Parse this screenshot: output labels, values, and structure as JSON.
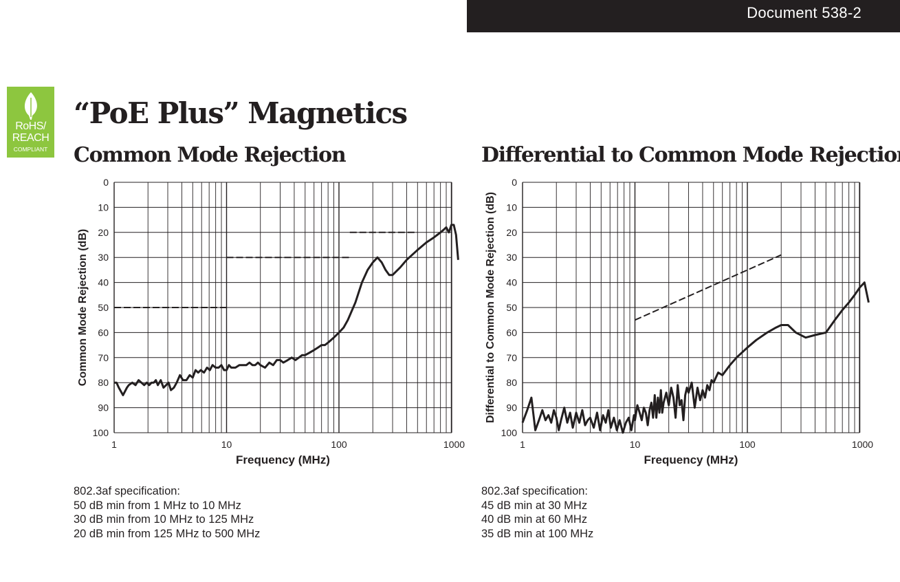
{
  "header": {
    "document_number": "Document 538-2"
  },
  "badge": {
    "line1": "RoHS/",
    "line2": "REACH",
    "line3": "COMPLIANT",
    "color": "#8dc63f",
    "icon": "leaf-icon"
  },
  "page": {
    "title": "“PoE Plus” Magnetics"
  },
  "chart_data": [
    {
      "type": "line",
      "title": "Common Mode Rejection",
      "xlabel": "Frequency (MHz)",
      "ylabel": "Common Mode Rejection (dB)",
      "x_scale": "log",
      "xlim": [
        1,
        1200
      ],
      "ylim": [
        0,
        100
      ],
      "y_inverted": true,
      "x_ticks": [
        "1",
        "10",
        "100",
        "1000"
      ],
      "y_ticks": [
        "0",
        "10",
        "20",
        "30",
        "40",
        "50",
        "60",
        "70",
        "80",
        "90",
        "100"
      ],
      "grid": true,
      "series": [
        {
          "style": "solid",
          "x": [
            1,
            1.05,
            1.1,
            1.2,
            1.3,
            1.35,
            1.45,
            1.55,
            1.65,
            1.75,
            1.85,
            1.95,
            2.05,
            2.15,
            2.25,
            2.35,
            2.45,
            2.6,
            2.75,
            2.9,
            3.05,
            3.2,
            3.4,
            3.6,
            3.85,
            4.1,
            4.4,
            4.7,
            5,
            5.3,
            5.6,
            5.9,
            6.3,
            6.7,
            7.1,
            7.5,
            8,
            8.5,
            9,
            9.5,
            10,
            10.5,
            11,
            12,
            13,
            14,
            15,
            16,
            17,
            18,
            19,
            20,
            22,
            24,
            26,
            28,
            30,
            32,
            35,
            38,
            41,
            44,
            47,
            50,
            55,
            60,
            65,
            70,
            75,
            80,
            90,
            100,
            110,
            120,
            140,
            160,
            180,
            200,
            220,
            240,
            260,
            280,
            300,
            350,
            400,
            500,
            600,
            700,
            800,
            850,
            900,
            950,
            1000,
            1050,
            1100,
            1150
          ],
          "y": [
            80,
            80,
            82,
            85,
            82,
            81,
            80,
            81,
            79,
            80,
            81,
            80,
            81,
            80,
            80,
            79,
            81,
            79,
            82,
            81,
            80,
            83,
            82,
            80,
            77,
            79,
            79,
            77,
            78,
            75,
            76,
            75,
            76,
            74,
            75,
            73,
            74,
            74,
            73,
            75,
            75,
            73,
            74,
            74,
            73,
            73,
            73,
            72,
            73,
            73,
            72,
            73,
            74,
            72,
            73,
            71,
            71,
            72,
            71,
            70,
            71,
            70,
            69,
            69,
            68,
            67,
            66,
            65,
            65,
            64,
            62,
            60,
            58,
            55,
            48,
            40,
            35,
            32,
            30,
            32,
            35,
            37,
            37,
            34,
            31,
            27,
            24,
            22,
            20,
            19,
            18,
            20,
            17,
            17,
            21,
            31
          ]
        },
        {
          "style": "dashed",
          "name_note": "802.3af spec",
          "x": [
            1,
            10
          ],
          "y": [
            50,
            50
          ]
        },
        {
          "style": "dashed",
          "x": [
            10,
            125
          ],
          "y": [
            30,
            30
          ]
        },
        {
          "style": "dashed",
          "x": [
            125,
            500
          ],
          "y": [
            20,
            20
          ]
        }
      ],
      "notes": [
        "802.3af specification:",
        "50 dB min from 1 MHz to 10 MHz",
        "30 dB min from 10 MHz to 125 MHz",
        "20 dB min from 125 MHz to 500 MHz"
      ]
    },
    {
      "type": "line",
      "title": "Differential to Common Mode Rejection",
      "xlabel": "Frequency (MHz)",
      "ylabel": "Differential to Common Mode Rejection (dB)",
      "x_scale": "log",
      "xlim": [
        1,
        1200
      ],
      "ylim": [
        0,
        100
      ],
      "y_inverted": true,
      "x_ticks": [
        "1",
        "10",
        "100",
        "1000"
      ],
      "y_ticks": [
        "0",
        "10",
        "20",
        "30",
        "40",
        "50",
        "60",
        "70",
        "80",
        "90",
        "100"
      ],
      "grid": true,
      "series": [
        {
          "style": "solid",
          "x": [
            1,
            1.1,
            1.2,
            1.3,
            1.4,
            1.5,
            1.6,
            1.7,
            1.8,
            1.9,
            2,
            2.1,
            2.2,
            2.35,
            2.5,
            2.65,
            2.8,
            3,
            3.2,
            3.4,
            3.6,
            3.8,
            4,
            4.3,
            4.6,
            4.9,
            5.2,
            5.5,
            5.8,
            6.1,
            6.5,
            6.9,
            7.3,
            7.8,
            8.3,
            8.8,
            9.3,
            9.8,
            10,
            10.5,
            11,
            11.5,
            12,
            12.5,
            13,
            13.5,
            14,
            14.5,
            15,
            15.5,
            16,
            16.5,
            17,
            17.5,
            18,
            19,
            20,
            21,
            22,
            23,
            24,
            25,
            26,
            27,
            28,
            29,
            30,
            32,
            34,
            36,
            38,
            40,
            42,
            44,
            46,
            48,
            50,
            55,
            60,
            70,
            80,
            100,
            120,
            150,
            180,
            200,
            230,
            270,
            330,
            400,
            500,
            600,
            700,
            800,
            900,
            1000,
            1100,
            1200
          ],
          "y": [
            96,
            91,
            86,
            99,
            95,
            91,
            95,
            93,
            96,
            91,
            94,
            99,
            95,
            90,
            96,
            92,
            98,
            92,
            96,
            91,
            97,
            95,
            94,
            98,
            92,
            99,
            93,
            96,
            91,
            98,
            94,
            99,
            95,
            100,
            96,
            94,
            99,
            93,
            95,
            89,
            92,
            95,
            90,
            92,
            97,
            91,
            88,
            94,
            85,
            94,
            86,
            92,
            83,
            92,
            88,
            84,
            89,
            82,
            86,
            94,
            81,
            89,
            87,
            95,
            85,
            82,
            84,
            80,
            90,
            82,
            87,
            83,
            86,
            81,
            83,
            79,
            80,
            76,
            77,
            73,
            70,
            66,
            63,
            60,
            58,
            57,
            57,
            60,
            62,
            61,
            60,
            55,
            51,
            48,
            45,
            42,
            40,
            48
          ]
        },
        {
          "style": "dashed",
          "x": [
            10,
            200
          ],
          "y": [
            55,
            29
          ]
        }
      ],
      "notes": [
        "802.3af specification:",
        "45 dB min at 30 MHz",
        "40 dB min at 60 MHz",
        "35 dB min at 100 MHz"
      ]
    }
  ]
}
